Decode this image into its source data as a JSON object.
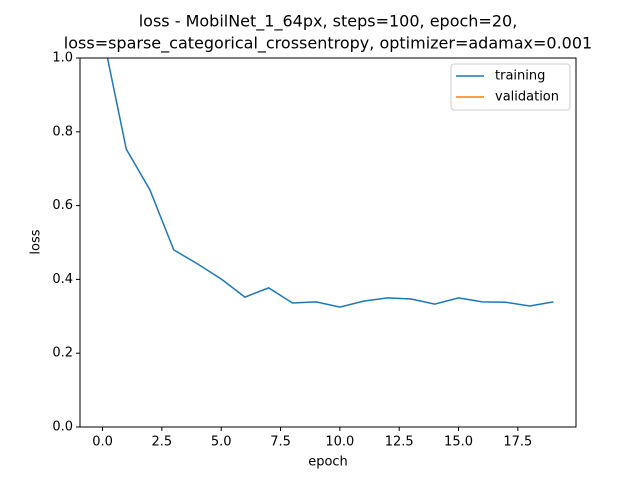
{
  "chart_data": {
    "type": "line",
    "title": [
      "loss - MobilNet_1_64px, steps=100, epoch=20,",
      "loss=sparse_categorical_crossentropy, optimizer=adamax=0.001"
    ],
    "xlabel": "epoch",
    "ylabel": "loss",
    "x": [
      0,
      1,
      2,
      3,
      4,
      5,
      6,
      7,
      8,
      9,
      10,
      11,
      12,
      13,
      14,
      15,
      16,
      17,
      18,
      19
    ],
    "series": [
      {
        "name": "training",
        "color": "#1f77b4",
        "values": [
          1.065,
          0.753,
          0.642,
          0.48,
          0.442,
          0.401,
          0.352,
          0.377,
          0.336,
          0.339,
          0.325,
          0.341,
          0.35,
          0.347,
          0.333,
          0.35,
          0.339,
          0.338,
          0.328,
          0.339
        ]
      },
      {
        "name": "validation",
        "color": "#ff7f0e",
        "values": [
          null,
          null,
          null,
          null,
          null,
          null,
          null,
          null,
          null,
          null,
          null,
          null,
          null,
          null,
          null,
          null,
          null,
          null,
          null,
          null
        ]
      }
    ],
    "xlim": [
      -0.95,
      19.95
    ],
    "xticks": [
      {
        "value": 0,
        "label": "0.0"
      },
      {
        "value": 2.5,
        "label": "2.5"
      },
      {
        "value": 5,
        "label": "5.0"
      },
      {
        "value": 7.5,
        "label": "7.5"
      },
      {
        "value": 10,
        "label": "10.0"
      },
      {
        "value": 12.5,
        "label": "12.5"
      },
      {
        "value": 15,
        "label": "15.0"
      },
      {
        "value": 17.5,
        "label": "17.5"
      }
    ],
    "ylim": [
      0,
      1
    ],
    "yticks": [
      {
        "value": 0,
        "label": "0.0"
      },
      {
        "value": 0.2,
        "label": "0.2"
      },
      {
        "value": 0.4,
        "label": "0.4"
      },
      {
        "value": 0.6,
        "label": "0.6"
      },
      {
        "value": 0.8,
        "label": "0.8"
      },
      {
        "value": 1,
        "label": "1.0"
      }
    ],
    "legend": "upper right"
  }
}
